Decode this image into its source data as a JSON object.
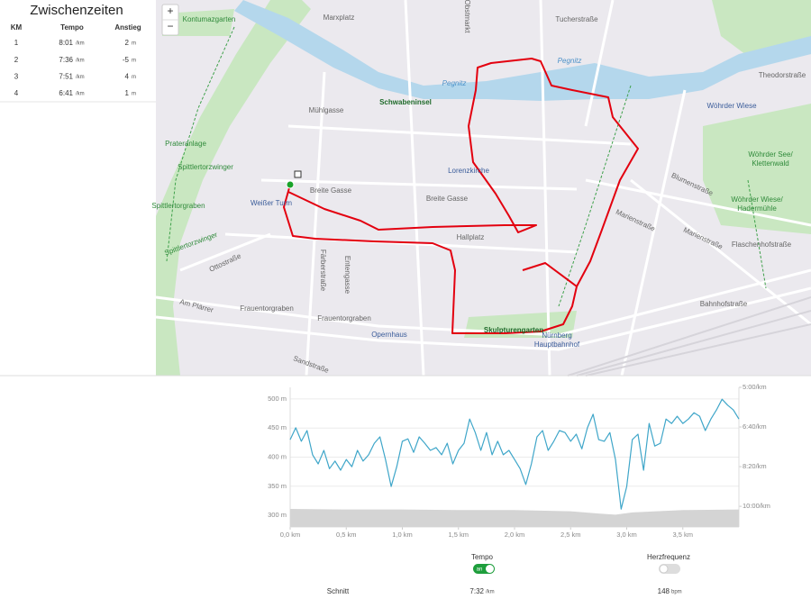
{
  "splits": {
    "title": "Zwischenzeiten",
    "columns": [
      "KM",
      "Tempo",
      "Anstieg"
    ],
    "rows": [
      {
        "km": 1,
        "pace": "8:01",
        "pace_unit": "/km",
        "climb": 2,
        "climb_unit": "m"
      },
      {
        "km": 2,
        "pace": "7:36",
        "pace_unit": "/km",
        "climb": -5,
        "climb_unit": "m"
      },
      {
        "km": 3,
        "pace": "7:51",
        "pace_unit": "/km",
        "climb": 4,
        "climb_unit": "m"
      },
      {
        "km": 4,
        "pace": "6:41",
        "pace_unit": "/km",
        "climb": 1,
        "climb_unit": "m"
      }
    ]
  },
  "map": {
    "zoom_in": "+",
    "zoom_out": "−",
    "labels": [
      "Kontumazgarten",
      "Marxplatz",
      "Obstmarkt",
      "Tucherstraße",
      "Pegnitz",
      "Pegnitz",
      "Schwabeninsel",
      "Mühlgasse",
      "Theodorstraße",
      "Wöhrder Wiese",
      "Prateranlage",
      "Spittlertorzwinger",
      "Lorenzkirche",
      "Wöhrder See/",
      "Klettenwald",
      "Breite Gasse",
      "Breite Gasse",
      "Weißer Turm",
      "Spittlertorgraben",
      "Blumenstraße",
      "Wöhrder Wiese/",
      "Hadermühle",
      "Marienstraße",
      "Flaschenhofstraße",
      "Spittlertorzwinger",
      "Hallplatz",
      "Ottostraße",
      "Färberstraße",
      "Entengasse",
      "Bahnhofstraße",
      "Am Plärrer",
      "Frauentorgraben",
      "Frauentorgraben",
      "Opernhaus",
      "Skulpturengarten",
      "Nürnberg",
      "Hauptbahnhof",
      "Sandstraße",
      "Marienstraße"
    ]
  },
  "chart_data": {
    "type": "line",
    "xlim": [
      0,
      4.0
    ],
    "xticks": [
      {
        "value": 0,
        "label": "0,0 km"
      },
      {
        "value": 0.5,
        "label": "0,5 km"
      },
      {
        "value": 1.0,
        "label": "1,0 km"
      },
      {
        "value": 1.5,
        "label": "1,5 km"
      },
      {
        "value": 2.0,
        "label": "2,0 km"
      },
      {
        "value": 2.5,
        "label": "2,5 km"
      },
      {
        "value": 3.0,
        "label": "3,0 km"
      },
      {
        "value": 3.5,
        "label": "3,5 km"
      }
    ],
    "ylim": [
      280,
      520
    ],
    "yticks": [
      {
        "value": 300,
        "label": "300 m"
      },
      {
        "value": 350,
        "label": "350 m"
      },
      {
        "value": 400,
        "label": "400 m"
      },
      {
        "value": 450,
        "label": "450 m"
      },
      {
        "value": 500,
        "label": "500 m"
      }
    ],
    "y2lim": [
      652,
      300
    ],
    "y2ticks": [
      {
        "value": 300,
        "label": "5:00/km"
      },
      {
        "value": 400,
        "label": "6:40/km"
      },
      {
        "value": 500,
        "label": "8:20/km"
      },
      {
        "value": 600,
        "label": "10:00/km"
      }
    ],
    "grid": true,
    "series": [
      {
        "type": "area",
        "color": "#d4d4d4",
        "x": [
          0,
          0.5,
          1.0,
          1.5,
          2.0,
          2.5,
          2.75,
          2.9,
          3.05,
          3.5,
          4.0
        ],
        "values": [
          311,
          310,
          310,
          309,
          309,
          307,
          303,
          301,
          305,
          309,
          310
        ]
      },
      {
        "type": "line",
        "axis": "y2",
        "color": "#3fa6c9",
        "x": [
          0,
          0.05,
          0.1,
          0.15,
          0.2,
          0.25,
          0.3,
          0.35,
          0.4,
          0.45,
          0.5,
          0.55,
          0.6,
          0.65,
          0.7,
          0.75,
          0.8,
          0.85,
          0.9,
          0.95,
          1.0,
          1.05,
          1.1,
          1.15,
          1.2,
          1.25,
          1.3,
          1.35,
          1.4,
          1.45,
          1.5,
          1.55,
          1.6,
          1.65,
          1.7,
          1.75,
          1.8,
          1.85,
          1.9,
          1.95,
          2.0,
          2.05,
          2.1,
          2.15,
          2.2,
          2.25,
          2.3,
          2.35,
          2.4,
          2.45,
          2.5,
          2.55,
          2.6,
          2.65,
          2.7,
          2.75,
          2.8,
          2.85,
          2.9,
          2.95,
          3.0,
          3.05,
          3.1,
          3.15,
          3.2,
          3.25,
          3.3,
          3.35,
          3.4,
          3.45,
          3.5,
          3.55,
          3.6,
          3.65,
          3.7,
          3.75,
          3.8,
          3.85,
          3.9,
          3.95,
          4.0
        ],
        "values": [
          432,
          402,
          436,
          409,
          470,
          493,
          459,
          505,
          486,
          509,
          482,
          500,
          459,
          486,
          470,
          441,
          425,
          482,
          550,
          500,
          436,
          430,
          464,
          425,
          441,
          459,
          452,
          470,
          441,
          493,
          459,
          441,
          380,
          414,
          459,
          414,
          470,
          436,
          470,
          459,
          482,
          505,
          545,
          493,
          425,
          409,
          459,
          436,
          409,
          414,
          436,
          418,
          455,
          402,
          368,
          432,
          436,
          414,
          482,
          607,
          550,
          432,
          418,
          509,
          391,
          448,
          441,
          380,
          391,
          373,
          391,
          380,
          364,
          373,
          409,
          380,
          357,
          330,
          345,
          357,
          380
        ]
      }
    ]
  },
  "controls": [
    {
      "label": "Tempo",
      "toggle": "an"
    },
    {
      "label": "Herzfrequenz"
    }
  ],
  "summary": {
    "label": "Schnitt",
    "pace": "7:32",
    "pace_unit": "/km",
    "heart_rate": 148,
    "heart_rate_unit": "bpm"
  }
}
